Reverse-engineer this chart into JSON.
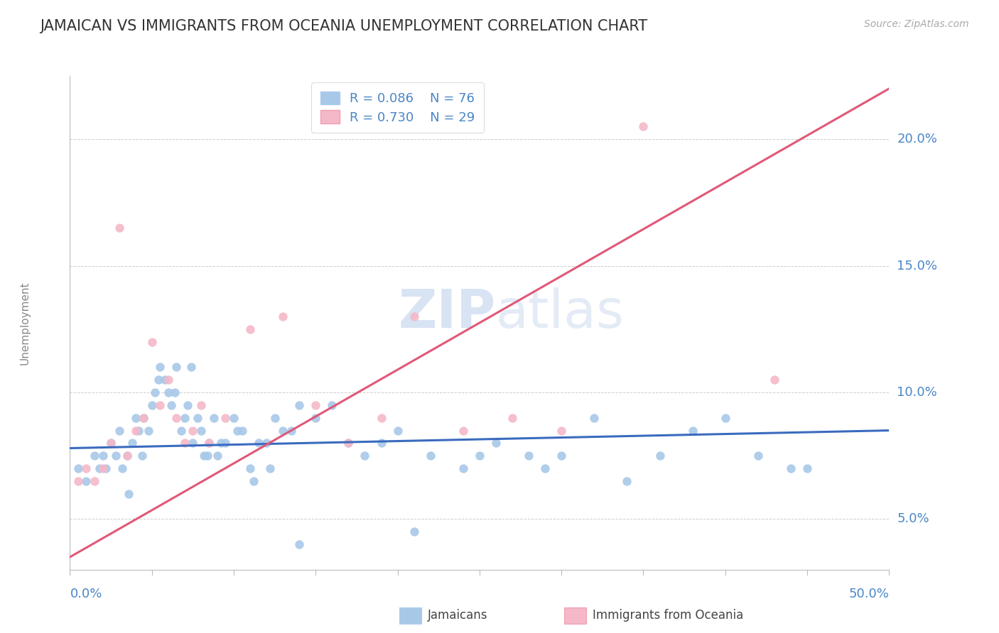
{
  "title": "JAMAICAN VS IMMIGRANTS FROM OCEANIA UNEMPLOYMENT CORRELATION CHART",
  "source": "Source: ZipAtlas.com",
  "ylabel": "Unemployment",
  "ylabel_ticks": [
    5.0,
    10.0,
    15.0,
    20.0
  ],
  "xlim": [
    0.0,
    50.0
  ],
  "ylim": [
    3.0,
    22.5
  ],
  "series1_label": "Jamaicans",
  "series1_R": "0.086",
  "series1_N": "76",
  "series1_color": "#a8c8e8",
  "series1_line_color": "#3a6bbf",
  "series2_label": "Immigrants from Oceania",
  "series2_R": "0.730",
  "series2_N": "29",
  "series2_color": "#f4b8c8",
  "series2_line_color": "#e05878",
  "watermark_zip": "ZIP",
  "watermark_atlas": "atlas",
  "background_color": "#ffffff",
  "grid_color": "#cccccc",
  "title_color": "#333333",
  "axis_label_color": "#4a86c8",
  "jamaicans_x": [
    0.5,
    1.0,
    1.5,
    1.8,
    2.0,
    2.2,
    2.5,
    2.8,
    3.0,
    3.2,
    3.5,
    3.8,
    4.0,
    4.2,
    4.5,
    4.8,
    5.0,
    5.2,
    5.5,
    5.8,
    6.0,
    6.2,
    6.5,
    6.8,
    7.0,
    7.2,
    7.5,
    7.8,
    8.0,
    8.2,
    8.5,
    8.8,
    9.0,
    9.5,
    10.0,
    10.5,
    11.0,
    11.5,
    12.0,
    12.5,
    13.0,
    13.5,
    14.0,
    15.0,
    16.0,
    17.0,
    18.0,
    19.0,
    20.0,
    22.0,
    24.0,
    25.0,
    26.0,
    28.0,
    30.0,
    32.0,
    34.0,
    36.0,
    38.0,
    40.0,
    42.0,
    44.0,
    3.6,
    4.4,
    5.4,
    6.4,
    7.4,
    8.4,
    9.2,
    10.2,
    11.2,
    12.2,
    14.0,
    21.0,
    29.0,
    45.0
  ],
  "jamaicans_y": [
    7.0,
    6.5,
    7.5,
    7.0,
    7.5,
    7.0,
    8.0,
    7.5,
    8.5,
    7.0,
    7.5,
    8.0,
    9.0,
    8.5,
    9.0,
    8.5,
    9.5,
    10.0,
    11.0,
    10.5,
    10.0,
    9.5,
    11.0,
    8.5,
    9.0,
    9.5,
    8.0,
    9.0,
    8.5,
    7.5,
    8.0,
    9.0,
    7.5,
    8.0,
    9.0,
    8.5,
    7.0,
    8.0,
    8.0,
    9.0,
    8.5,
    8.5,
    9.5,
    9.0,
    9.5,
    8.0,
    7.5,
    8.0,
    8.5,
    7.5,
    7.0,
    7.5,
    8.0,
    7.5,
    7.5,
    9.0,
    6.5,
    7.5,
    8.5,
    9.0,
    7.5,
    7.0,
    6.0,
    7.5,
    10.5,
    10.0,
    11.0,
    7.5,
    8.0,
    8.5,
    6.5,
    7.0,
    4.0,
    4.5,
    7.0,
    7.0
  ],
  "oceania_x": [
    0.5,
    1.0,
    1.5,
    2.0,
    2.5,
    3.0,
    3.5,
    4.0,
    4.5,
    5.0,
    5.5,
    6.0,
    6.5,
    7.0,
    7.5,
    8.0,
    8.5,
    9.5,
    11.0,
    13.0,
    15.0,
    17.0,
    19.0,
    21.0,
    24.0,
    27.0,
    30.0,
    35.0,
    43.0
  ],
  "oceania_y": [
    6.5,
    7.0,
    6.5,
    7.0,
    8.0,
    16.5,
    7.5,
    8.5,
    9.0,
    12.0,
    9.5,
    10.5,
    9.0,
    8.0,
    8.5,
    9.5,
    8.0,
    9.0,
    12.5,
    13.0,
    9.5,
    8.0,
    9.0,
    13.0,
    8.5,
    9.0,
    8.5,
    20.5,
    10.5
  ],
  "trendline_blue_x0": 0.0,
  "trendline_blue_y0": 7.8,
  "trendline_blue_x1": 50.0,
  "trendline_blue_y1": 8.5,
  "trendline_pink_x0": 0.0,
  "trendline_pink_y0": 3.5,
  "trendline_pink_x1": 50.0,
  "trendline_pink_y1": 22.0
}
